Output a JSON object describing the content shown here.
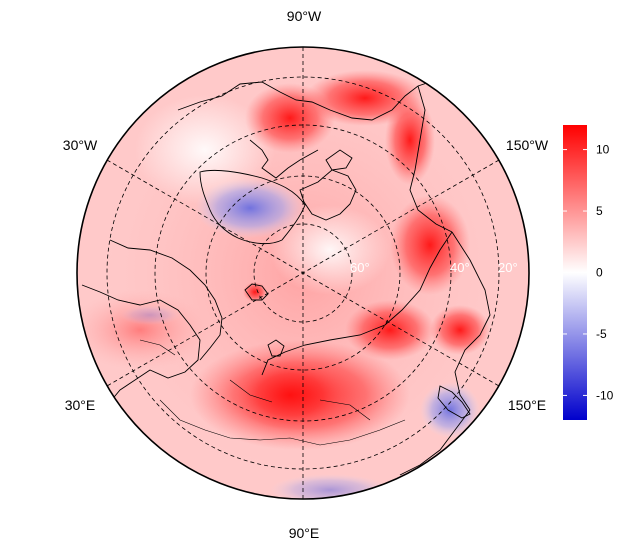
{
  "map": {
    "projection": "north-polar-stereographic",
    "variable_unit": "",
    "longitude_labels": [
      {
        "id": "90w",
        "text": "90°W"
      },
      {
        "id": "30w",
        "text": "30°W"
      },
      {
        "id": "150w",
        "text": "150°W"
      },
      {
        "id": "30e",
        "text": "30°E"
      },
      {
        "id": "150e",
        "text": "150°E"
      },
      {
        "id": "90e",
        "text": "90°E"
      }
    ],
    "latitude_labels": [
      {
        "id": "60",
        "text": "60°"
      },
      {
        "id": "40",
        "text": "40°"
      },
      {
        "id": "20",
        "text": "20°"
      }
    ],
    "colors": {
      "warm": "#ff0000",
      "neutral": "#ffffff",
      "cool": "#0000cc",
      "coastline": "#000000",
      "graticule": "#000000"
    }
  },
  "colorbar": {
    "min": -12,
    "max": 12,
    "ticks": [
      {
        "value": 10,
        "label": "10"
      },
      {
        "value": 5,
        "label": "5"
      },
      {
        "value": 0,
        "label": "0"
      },
      {
        "value": -5,
        "label": "-5"
      },
      {
        "value": -10,
        "label": "-10"
      }
    ]
  }
}
